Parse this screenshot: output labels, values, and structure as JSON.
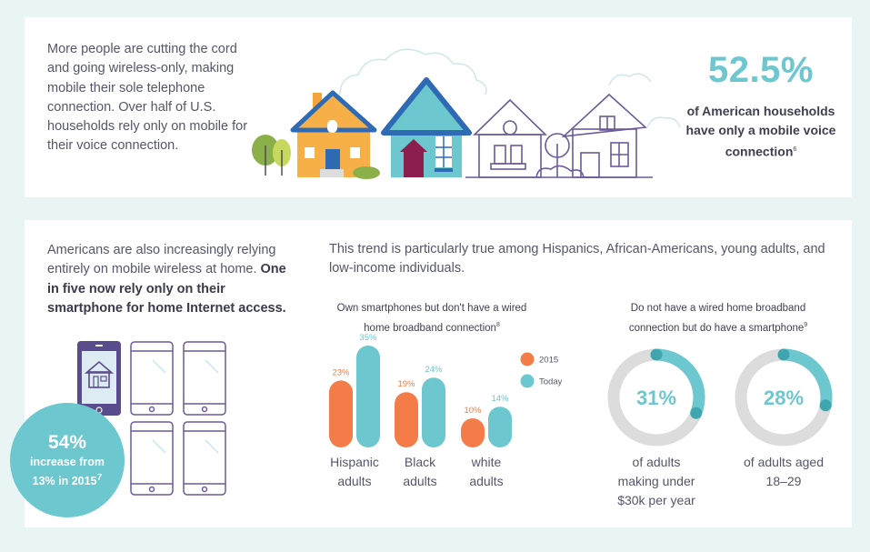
{
  "top": {
    "text": "More people are cutting the cord and going wireless-only, making mobile their sole telephone connection. Over half of U.S. households rely only on mobile for their voice connection.",
    "stat_value": "52.5%",
    "stat_caption": "of American households have only a mobile voice connection",
    "stat_footnote": "6"
  },
  "left": {
    "text": "Americans are also increasingly relying entirely on mobile wireless at home.",
    "bold_text": "One in five now rely only on their smartphone for home Internet access.",
    "badge_value": "54%",
    "badge_line1": "increase from",
    "badge_line2": "13% in 2015",
    "badge_footnote": "7"
  },
  "trend_text": "This trend is particularly true among Hispanics, African-Americans, young adults, and low-income individuals.",
  "colors": {
    "accent": "#6cc7cf",
    "orange": "#f47c48",
    "purple": "#5a4c8c",
    "ring": "#dcdcdc"
  },
  "icons": [
    "house-icon",
    "smartphone-icon",
    "tree-icon",
    "cloud-icon"
  ],
  "chart_data": [
    {
      "type": "bar",
      "title": "Own smartphones but don't have a wired home broadband connection",
      "title_footnote": "8",
      "categories": [
        "Hispanic adults",
        "Black adults",
        "white adults"
      ],
      "series": [
        {
          "name": "2015",
          "values": [
            23,
            19,
            10
          ],
          "labels": [
            "23%",
            "19%",
            "10%"
          ],
          "color": "#f47c48"
        },
        {
          "name": "Today",
          "values": [
            35,
            24,
            14
          ],
          "labels": [
            "35%",
            "24%",
            "14%"
          ],
          "color": "#6cc7cf"
        }
      ],
      "legend": "top-right"
    },
    {
      "type": "pie",
      "title": "Do not have a wired home broadband connection but do have a smartphone",
      "title_footnote": "9",
      "items": [
        {
          "value": 31,
          "label": "31%",
          "caption": "of adults making under $30k per year"
        },
        {
          "value": 28,
          "label": "28%",
          "caption": "of adults aged 18–29"
        }
      ]
    }
  ]
}
